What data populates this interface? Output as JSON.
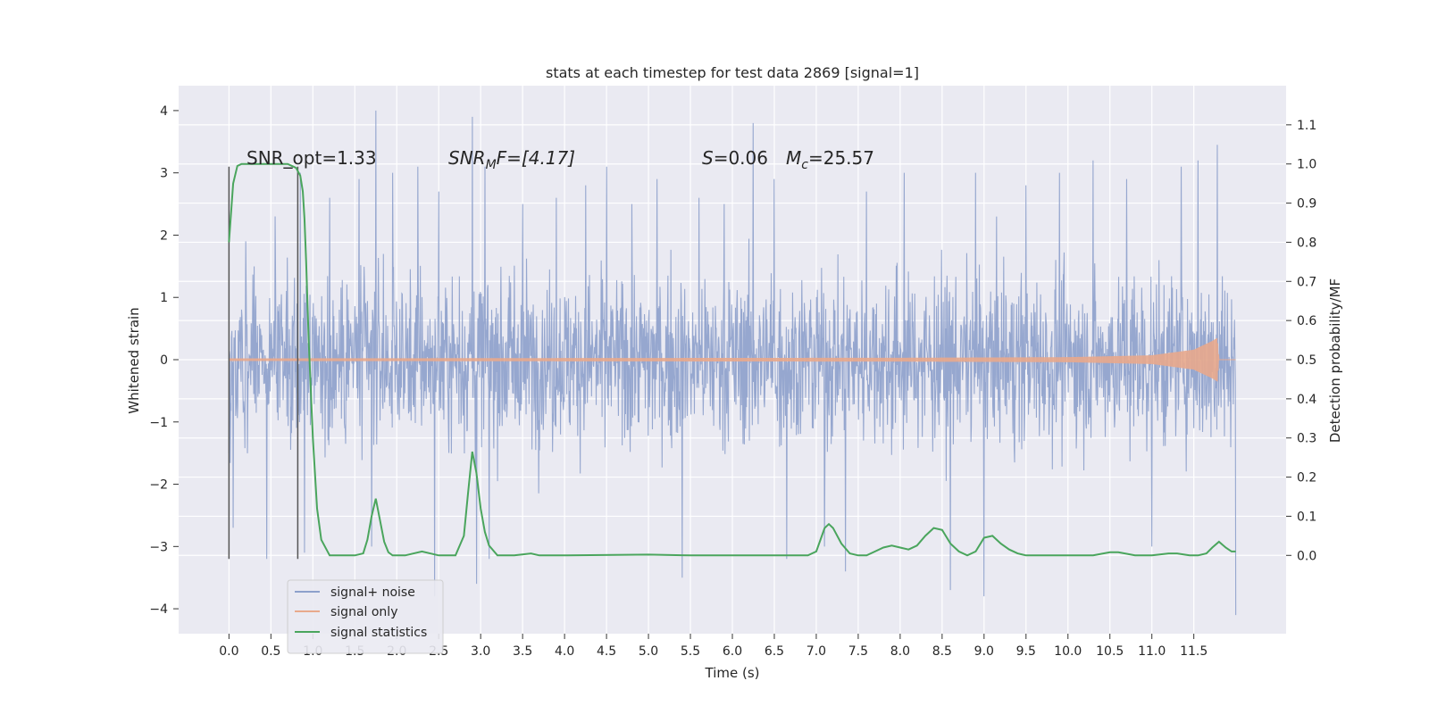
{
  "chart_data": {
    "type": "line",
    "title": "stats at each timestep for test data 2869 [signal=1]",
    "xlabel": "Time (s)",
    "ylabel": "Whitened strain",
    "ylabel_right": "Detection probability/MF",
    "xlim": [
      -0.6,
      12.6
    ],
    "ylim": [
      -4.4,
      4.4
    ],
    "ylim_right": [
      -0.2,
      1.2
    ],
    "x_ticks": [
      0.0,
      0.5,
      1.0,
      1.5,
      2.0,
      2.5,
      3.0,
      3.5,
      4.0,
      4.5,
      5.0,
      5.5,
      6.0,
      6.5,
      7.0,
      7.5,
      8.0,
      8.5,
      9.0,
      9.5,
      10.0,
      10.5,
      11.0,
      11.5
    ],
    "x_tick_labels": [
      "0.0",
      "0.5",
      "1.0",
      "1.5",
      "2.0",
      "2.5",
      "3.0",
      "3.5",
      "4.0",
      "4.5",
      "5.0",
      "5.5",
      "6.0",
      "6.5",
      "7.0",
      "7.5",
      "8.0",
      "8.5",
      "9.0",
      "9.5",
      "10.0",
      "10.5",
      "11.0",
      "11.5"
    ],
    "y_ticks": [
      -4,
      -3,
      -2,
      -1,
      0,
      1,
      2,
      3,
      4
    ],
    "y_tick_labels": [
      "−4",
      "−3",
      "−2",
      "−1",
      "0",
      "1",
      "2",
      "3",
      "4"
    ],
    "y_right_ticks": [
      0.0,
      0.1,
      0.2,
      0.3,
      0.4,
      0.5,
      0.6,
      0.7,
      0.8,
      0.9,
      1.0,
      1.1
    ],
    "y_right_tick_labels": [
      "0.0",
      "0.1",
      "0.2",
      "0.3",
      "0.4",
      "0.5",
      "0.6",
      "0.7",
      "0.8",
      "0.9",
      "1.0",
      "1.1"
    ],
    "grid": true,
    "legend_position": "lower-left",
    "annotations": {
      "snr_opt": "SNR_opt=1.33",
      "snr_mf_main": "SNR",
      "snr_mf_sub": "M",
      "snr_mf_rest": "F=[4.17]",
      "s_main": "S",
      "s_rest": "=0.06",
      "mc_main": "M",
      "mc_sub": "c",
      "mc_rest": "=25.57"
    },
    "vertical_lines_x": [
      0.0,
      0.82
    ],
    "series": [
      {
        "name": "signal+ noise",
        "color": "#8da0cb",
        "axis": "left",
        "x_range": [
          0.0,
          12.0
        ],
        "core_band": [
          -1.3,
          1.25
        ],
        "typical_peaks": [
          -2.6,
          2.6
        ],
        "extreme_values": [
          [
            0.0,
            1.5
          ],
          [
            0.0,
            -1.5
          ],
          [
            0.05,
            -2.7
          ],
          [
            0.2,
            1.9
          ],
          [
            0.45,
            -3.2
          ],
          [
            0.55,
            2.3
          ],
          [
            0.85,
            3.0
          ],
          [
            0.9,
            -3.1
          ],
          [
            1.2,
            2.6
          ],
          [
            1.55,
            2.9
          ],
          [
            1.7,
            -3.0
          ],
          [
            1.75,
            4.0
          ],
          [
            1.95,
            3.0
          ],
          [
            2.25,
            3.1
          ],
          [
            2.45,
            -3.8
          ],
          [
            2.5,
            2.7
          ],
          [
            2.9,
            3.9
          ],
          [
            2.95,
            -3.6
          ],
          [
            3.05,
            3.1
          ],
          [
            3.1,
            -3.2
          ],
          [
            3.5,
            2.5
          ],
          [
            3.9,
            2.6
          ],
          [
            4.25,
            2.8
          ],
          [
            4.5,
            3.1
          ],
          [
            4.8,
            2.5
          ],
          [
            5.1,
            2.9
          ],
          [
            5.4,
            -3.5
          ],
          [
            5.6,
            2.6
          ],
          [
            5.9,
            2.5
          ],
          [
            6.25,
            3.8
          ],
          [
            6.5,
            2.9
          ],
          [
            6.65,
            -3.2
          ],
          [
            7.1,
            -3.0
          ],
          [
            7.35,
            -3.4
          ],
          [
            7.6,
            2.7
          ],
          [
            8.05,
            3.0
          ],
          [
            8.6,
            -3.7
          ],
          [
            8.9,
            3.0
          ],
          [
            9.0,
            -3.8
          ],
          [
            9.5,
            2.8
          ],
          [
            9.9,
            3.0
          ],
          [
            10.3,
            3.2
          ],
          [
            10.7,
            2.9
          ],
          [
            11.0,
            -3.0
          ],
          [
            11.35,
            3.1
          ],
          [
            11.55,
            3.2
          ],
          [
            11.78,
            3.45
          ],
          [
            12.0,
            -4.1
          ]
        ]
      },
      {
        "name": "signal only",
        "color": "#e8a98c",
        "axis": "left",
        "x_range": [
          0.0,
          12.0
        ],
        "envelope": [
          [
            0.0,
            0.02
          ],
          [
            8.0,
            0.03
          ],
          [
            10.0,
            0.04
          ],
          [
            11.0,
            0.07
          ],
          [
            11.5,
            0.16
          ],
          [
            11.72,
            0.3
          ],
          [
            11.78,
            0.35
          ],
          [
            11.8,
            0.0
          ],
          [
            12.0,
            0.0
          ]
        ]
      },
      {
        "name": "signal statistics",
        "color": "#4aa55d",
        "axis": "right",
        "x": [
          0.0,
          0.05,
          0.1,
          0.15,
          0.2,
          0.3,
          0.4,
          0.5,
          0.6,
          0.7,
          0.75,
          0.8,
          0.85,
          0.88,
          0.9,
          0.92,
          0.95,
          1.0,
          1.05,
          1.1,
          1.2,
          1.3,
          1.4,
          1.5,
          1.6,
          1.65,
          1.7,
          1.75,
          1.8,
          1.85,
          1.9,
          1.95,
          2.0,
          2.1,
          2.3,
          2.5,
          2.7,
          2.8,
          2.85,
          2.9,
          2.95,
          3.0,
          3.05,
          3.1,
          3.2,
          3.3,
          3.4,
          3.6,
          3.7,
          3.8,
          4.0,
          5.0,
          5.5,
          6.0,
          6.5,
          6.9,
          7.0,
          7.05,
          7.1,
          7.15,
          7.2,
          7.3,
          7.4,
          7.5,
          7.6,
          7.7,
          7.8,
          7.9,
          8.0,
          8.1,
          8.2,
          8.3,
          8.4,
          8.5,
          8.6,
          8.7,
          8.8,
          8.9,
          9.0,
          9.1,
          9.2,
          9.3,
          9.4,
          9.5,
          9.7,
          10.0,
          10.3,
          10.5,
          10.6,
          10.8,
          11.0,
          11.2,
          11.3,
          11.45,
          11.55,
          11.65,
          11.72,
          11.8,
          11.88,
          11.95,
          12.0
        ],
        "values": [
          0.8,
          0.95,
          0.995,
          1.0,
          1.0,
          1.0,
          1.0,
          1.0,
          1.0,
          1.0,
          0.995,
          0.99,
          0.97,
          0.93,
          0.86,
          0.75,
          0.55,
          0.3,
          0.12,
          0.04,
          0.0,
          0.0,
          0.0,
          0.0,
          0.005,
          0.04,
          0.1,
          0.145,
          0.09,
          0.035,
          0.008,
          0.0,
          0.0,
          0.0,
          0.01,
          0.0,
          0.0,
          0.05,
          0.16,
          0.265,
          0.21,
          0.12,
          0.06,
          0.025,
          0.0,
          0.0,
          0.0,
          0.005,
          0.0,
          0.0,
          0.0,
          0.002,
          0.0,
          0.0,
          0.0,
          0.0,
          0.01,
          0.04,
          0.07,
          0.08,
          0.07,
          0.03,
          0.005,
          0.0,
          0.0,
          0.01,
          0.02,
          0.025,
          0.02,
          0.015,
          0.025,
          0.05,
          0.07,
          0.065,
          0.03,
          0.01,
          0.0,
          0.01,
          0.045,
          0.05,
          0.03,
          0.015,
          0.005,
          0.0,
          0.0,
          0.0,
          0.0,
          0.008,
          0.008,
          0.0,
          0.0,
          0.005,
          0.005,
          0.0,
          0.0,
          0.005,
          0.02,
          0.035,
          0.02,
          0.01,
          0.01
        ]
      }
    ]
  }
}
